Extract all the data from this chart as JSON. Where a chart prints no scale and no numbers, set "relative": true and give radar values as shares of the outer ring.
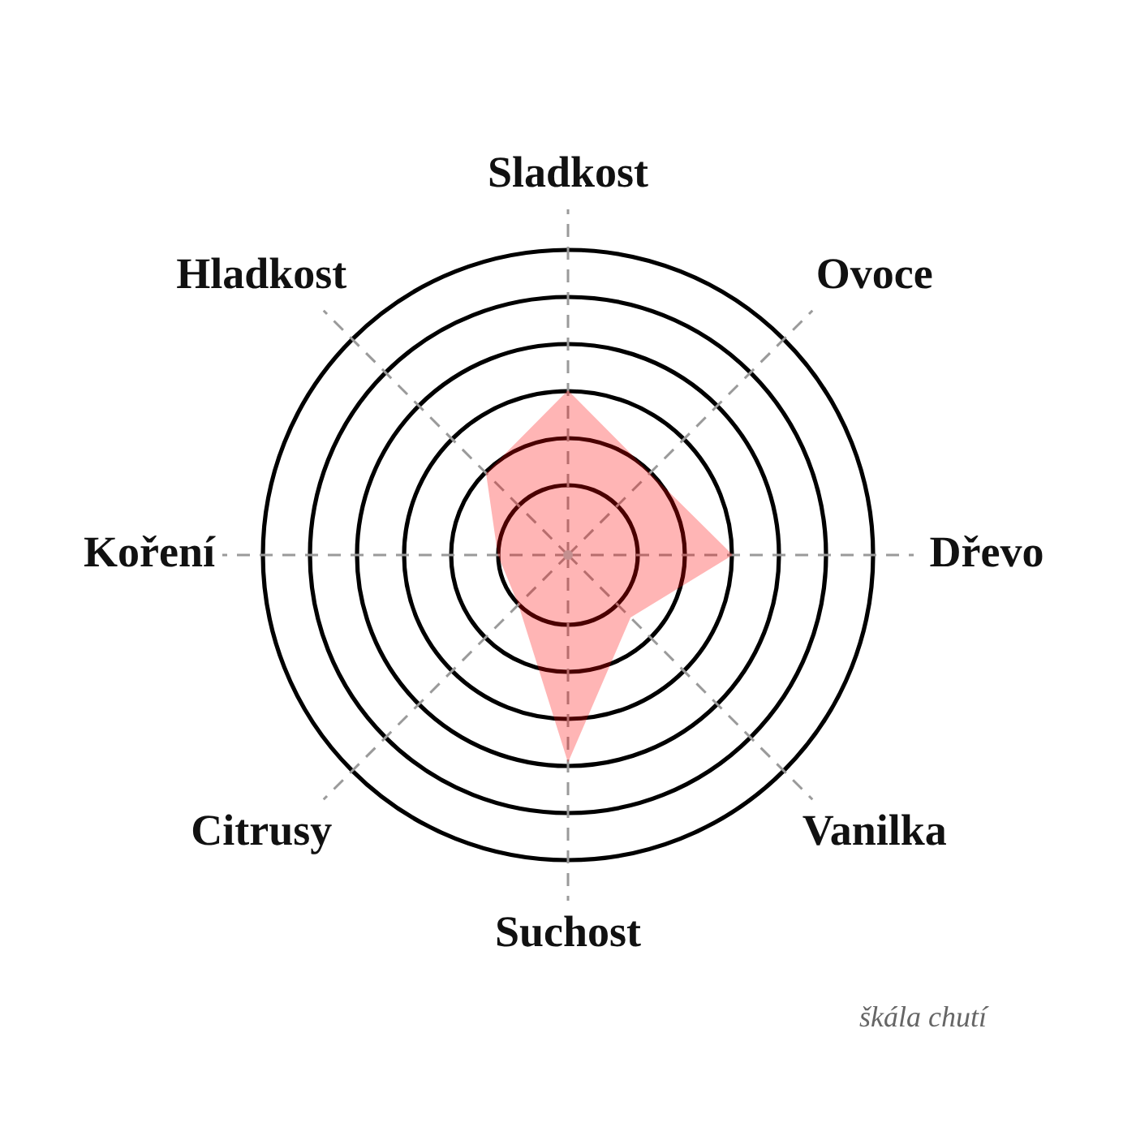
{
  "chart_data": {
    "type": "radar",
    "categories": [
      "Sladkost",
      "Ovoce",
      "Dřevo",
      "Vanilka",
      "Suchost",
      "Citrusy",
      "Koření",
      "Hladkost"
    ],
    "relative": true,
    "series": [
      {
        "color": "#ffb5b5",
        "values": [
          0.54,
          0.38,
          0.54,
          0.29,
          0.68,
          0.23,
          0.23,
          0.38
        ]
      }
    ],
    "grid": true,
    "legend": false,
    "marker": "none",
    "annotations": [
      "škála chutí"
    ]
  }
}
